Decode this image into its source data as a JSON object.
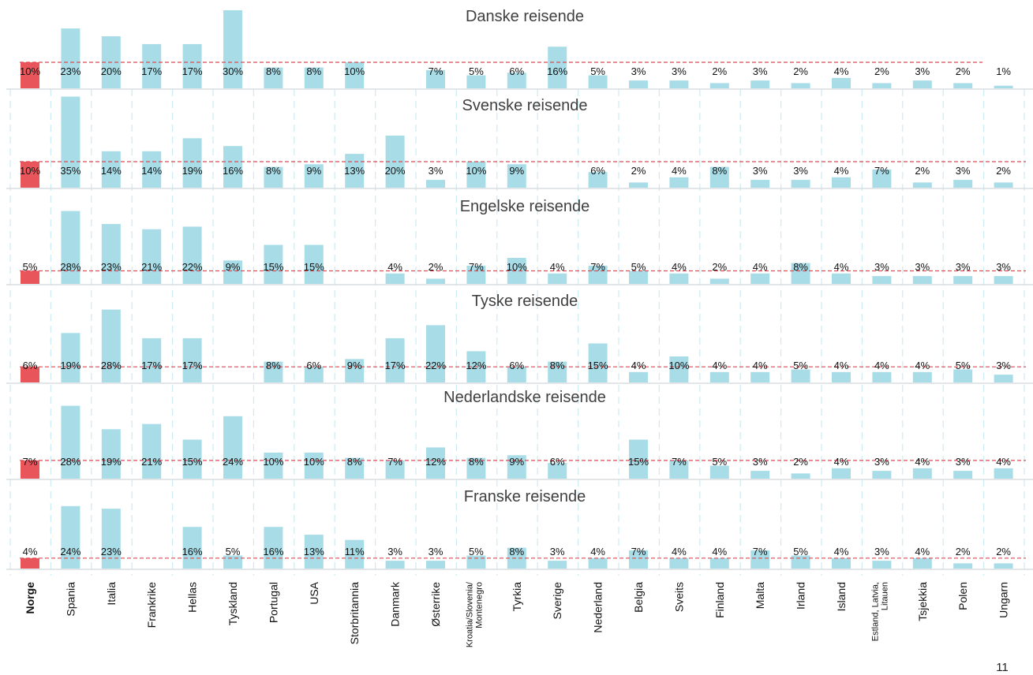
{
  "page_number": "11",
  "colors": {
    "base_bar": "#e8565c",
    "bar": "#a8dde8",
    "reference_line": "#e8454f",
    "grid_line": "#cdebf2",
    "separator": "#d9dde0"
  },
  "chart_data": {
    "type": "bar",
    "layout": "small-multiples",
    "categories": [
      "Norge",
      "Spania",
      "Italia",
      "Frankrike",
      "Hellas",
      "Tyskland",
      "Portugal",
      "USA",
      "Storbritannia",
      "Danmark",
      "Østerrike",
      "Kroatia/Slovenia/\nMontenegro",
      "Tyrkia",
      "Sverige",
      "Nederland",
      "Belgia",
      "Sveits",
      "Finland",
      "Malta",
      "Irland",
      "Island",
      "Estland, Latvia,\nLitauen",
      "Tsjekkia",
      "Polen",
      "Ungarn"
    ],
    "value_unit": "%",
    "reference_line": "dashed line at each panel's Norge value",
    "panels": [
      {
        "title": "Danske reisende",
        "values": [
          10,
          23,
          20,
          17,
          17,
          30,
          8,
          8,
          10,
          null,
          7,
          5,
          6,
          16,
          5,
          3,
          3,
          2,
          3,
          2,
          4,
          2,
          3,
          2,
          1
        ]
      },
      {
        "title": "Svenske reisende",
        "values": [
          10,
          35,
          14,
          14,
          19,
          16,
          8,
          9,
          13,
          20,
          3,
          10,
          9,
          null,
          6,
          2,
          4,
          8,
          3,
          3,
          4,
          7,
          2,
          3,
          2
        ]
      },
      {
        "title": "Engelske reisende",
        "values": [
          5,
          28,
          23,
          21,
          22,
          9,
          15,
          15,
          null,
          4,
          2,
          7,
          10,
          4,
          7,
          5,
          4,
          2,
          4,
          8,
          4,
          3,
          3,
          3,
          3
        ]
      },
      {
        "title": "Tyske reisende",
        "values": [
          6,
          19,
          28,
          17,
          17,
          null,
          8,
          6,
          9,
          17,
          22,
          12,
          6,
          8,
          15,
          4,
          10,
          4,
          4,
          5,
          4,
          4,
          4,
          5,
          3
        ]
      },
      {
        "title": "Nederlandske reisende",
        "values": [
          7,
          28,
          19,
          21,
          15,
          24,
          10,
          10,
          8,
          7,
          12,
          8,
          9,
          6,
          null,
          15,
          7,
          5,
          3,
          2,
          4,
          3,
          4,
          3,
          4
        ]
      },
      {
        "title": "Franske reisende",
        "values": [
          4,
          24,
          23,
          null,
          16,
          5,
          16,
          13,
          11,
          3,
          3,
          5,
          8,
          3,
          4,
          7,
          4,
          4,
          7,
          5,
          4,
          3,
          4,
          2,
          2
        ]
      }
    ]
  }
}
